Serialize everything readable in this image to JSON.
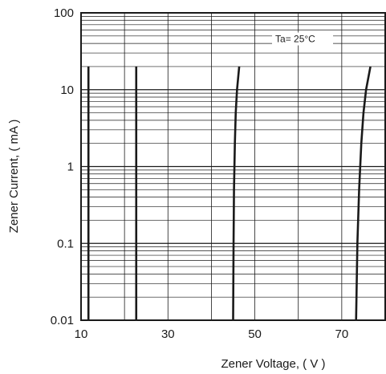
{
  "chart_data": {
    "type": "line",
    "title": "",
    "xlabel": "Zener Voltage, ( V )",
    "ylabel": "Zener Current, ( mA )",
    "xlim": [
      10,
      80
    ],
    "ylim": [
      0.01,
      100
    ],
    "y_scale": "log",
    "grid": true,
    "x_ticks": [
      "10",
      "30",
      "50",
      "70"
    ],
    "y_ticks": [
      "0.01",
      "0.1",
      "1",
      "10",
      "100"
    ],
    "annotation": "Ta= 25°C",
    "series": [
      {
        "x": [
          11.7,
          11.7,
          11.7,
          11.7,
          11.7
        ],
        "y": [
          0.01,
          0.1,
          1,
          10,
          20
        ]
      },
      {
        "x": [
          22.7,
          22.7,
          22.7,
          22.7,
          22.7
        ],
        "y": [
          0.01,
          0.1,
          1,
          10,
          20
        ]
      },
      {
        "x": [
          45.0,
          45.1,
          45.2,
          45.4,
          45.6,
          45.9,
          46.4
        ],
        "y": [
          0.01,
          0.1,
          0.5,
          2,
          5,
          10,
          20
        ]
      },
      {
        "x": [
          73.3,
          73.6,
          74.0,
          74.5,
          75.0,
          75.6,
          76.6
        ],
        "y": [
          0.01,
          0.1,
          0.5,
          2,
          5,
          10,
          20
        ]
      }
    ]
  }
}
